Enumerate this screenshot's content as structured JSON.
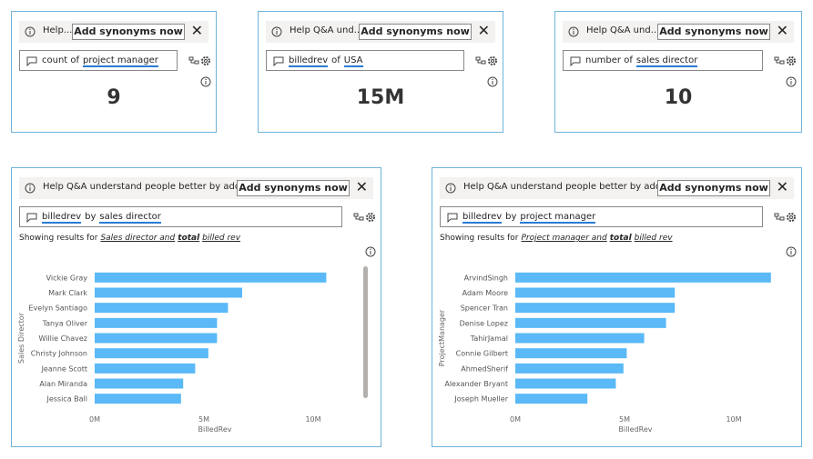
{
  "cards": [
    {
      "banner": "Help...",
      "button": "Add synonyms now",
      "query": [
        {
          "text": "count of"
        },
        {
          "text": "project manager",
          "underline": true
        }
      ],
      "value": "9"
    },
    {
      "banner": "Help Q&A und...",
      "button": "Add synonyms now",
      "query": [
        {
          "text": "billedrev",
          "underline": true
        },
        {
          "text": "of"
        },
        {
          "text": "USA",
          "underline": true
        }
      ],
      "value": "15M"
    },
    {
      "banner": "Help Q&A und...",
      "button": "Add synonyms now",
      "query": [
        {
          "text": "number of"
        },
        {
          "text": "sales director",
          "underline": true
        }
      ],
      "value": "10"
    }
  ],
  "chart_data": [
    {
      "type": "bar",
      "orientation": "horizontal",
      "banner": "Help Q&A understand people better by adding sy...",
      "button": "Add synonyms now",
      "query": [
        {
          "text": "billedrev",
          "underline": true
        },
        {
          "text": "by"
        },
        {
          "text": "sales director",
          "underline": true
        }
      ],
      "showing": "Showing results for",
      "interpretation": [
        {
          "text": "Sales director and"
        },
        {
          "text": "total",
          "bold": true
        },
        {
          "text": "billed rev"
        }
      ],
      "categories": [
        "Vickie Gray",
        "Mark Clark",
        "Evelyn Santiago",
        "Tanya Oliver",
        "Willie Chavez",
        "Christy Johnson",
        "Jeanne Scott",
        "Alan Miranda",
        "Jessica Ball"
      ],
      "values": [
        10600000,
        6750000,
        6100000,
        5600000,
        5600000,
        5200000,
        4600000,
        4050000,
        3950000
      ],
      "color": "#5ab9f6",
      "xlim": [
        0,
        12000000
      ],
      "xticks": [
        {
          "value": 0,
          "label": "0M"
        },
        {
          "value": 5000000,
          "label": "5M"
        },
        {
          "value": 10000000,
          "label": "10M"
        }
      ],
      "xlabel": "BilledRev",
      "ylabel": "Sales Director"
    },
    {
      "type": "bar",
      "orientation": "horizontal",
      "banner": "Help Q&A understand people better by adding sy...",
      "button": "Add synonyms now",
      "query": [
        {
          "text": "billedrev",
          "underline": true
        },
        {
          "text": "by"
        },
        {
          "text": "project manager",
          "underline": true
        }
      ],
      "showing": "Showing results for",
      "interpretation": [
        {
          "text": "Project manager and"
        },
        {
          "text": "total",
          "bold": true
        },
        {
          "text": "billed rev"
        }
      ],
      "categories": [
        "ArvindSingh",
        "Adam Moore",
        "Spencer Tran",
        "Denise Lopez",
        "TahirJamal",
        "Connie Gilbert",
        "AhmedSherif",
        "Alexander Bryant",
        "Joseph Mueller"
      ],
      "values": [
        11700000,
        7300000,
        7300000,
        6900000,
        5900000,
        5100000,
        4950000,
        4600000,
        3300000
      ],
      "color": "#5ab9f6",
      "xlim": [
        0,
        12000000
      ],
      "xticks": [
        {
          "value": 0,
          "label": "0M"
        },
        {
          "value": 5000000,
          "label": "5M"
        },
        {
          "value": 10000000,
          "label": "10M"
        }
      ],
      "xlabel": "BilledRev",
      "ylabel": "ProjectManager"
    }
  ]
}
